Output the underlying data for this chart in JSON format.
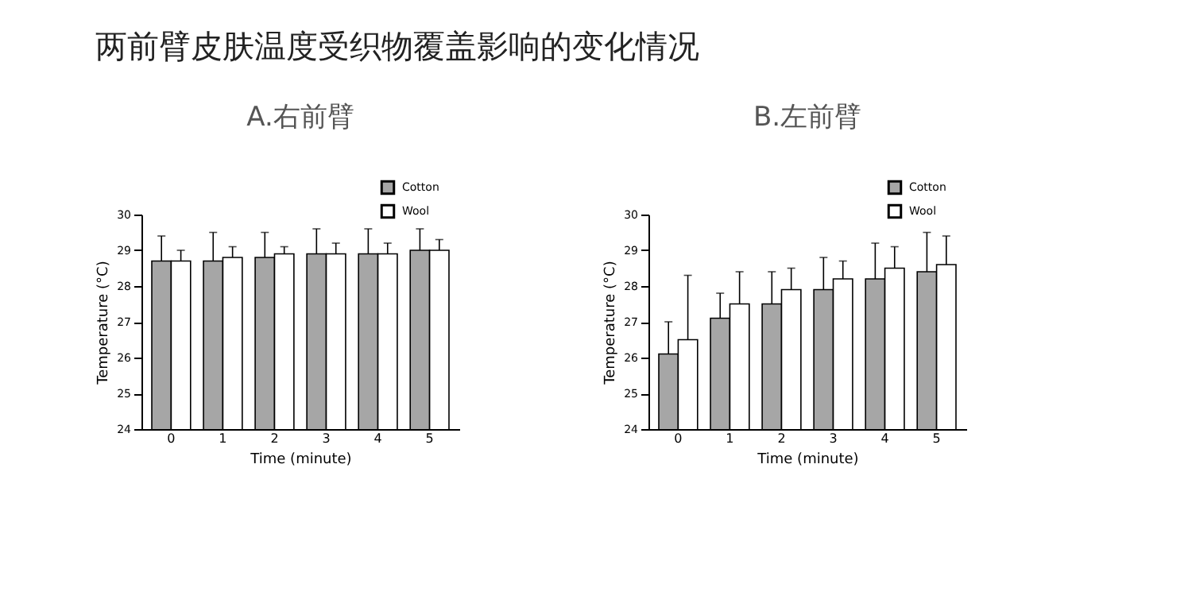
{
  "chart_data": [
    {
      "type": "other",
      "title": "两前臂皮肤温度受织物覆盖影响的变化情况"
    },
    {
      "type": "bar",
      "title": "A.右前臂",
      "xlabel": "Time (minute)",
      "ylabel": "Temperature (°C)",
      "categories": [
        "0",
        "1",
        "2",
        "3",
        "4",
        "5"
      ],
      "ylim": [
        24,
        30
      ],
      "yticks": [
        24,
        25,
        26,
        27,
        28,
        29,
        30
      ],
      "grid": false,
      "legend": "top right",
      "series": [
        {
          "name": "Cotton",
          "color": "#a6a6a6",
          "values": [
            28.7,
            28.7,
            28.8,
            28.9,
            28.9,
            29.0
          ],
          "errors": [
            [
              28.7,
              29.4
            ],
            [
              28.7,
              29.5
            ],
            [
              28.8,
              29.5
            ],
            [
              28.9,
              29.6
            ],
            [
              28.9,
              29.6
            ],
            [
              29.0,
              29.6
            ]
          ]
        },
        {
          "name": "Wool",
          "color": "#ffffff",
          "values": [
            28.7,
            28.8,
            28.9,
            28.9,
            28.9,
            29.0
          ],
          "errors": [
            [
              28.7,
              29.0
            ],
            [
              28.8,
              29.1
            ],
            [
              28.9,
              29.1
            ],
            [
              28.9,
              29.2
            ],
            [
              28.9,
              29.2
            ],
            [
              29.0,
              29.3
            ]
          ]
        }
      ]
    },
    {
      "type": "bar",
      "title": "B.左前臂",
      "xlabel": "Time (minute)",
      "ylabel": "Temperature (°C)",
      "categories": [
        "0",
        "1",
        "2",
        "3",
        "4",
        "5"
      ],
      "ylim": [
        24,
        30
      ],
      "yticks": [
        24,
        25,
        26,
        27,
        28,
        29,
        30
      ],
      "grid": false,
      "legend": "top right",
      "series": [
        {
          "name": "Cotton",
          "color": "#a6a6a6",
          "values": [
            26.1,
            27.1,
            27.5,
            27.9,
            28.2,
            28.4
          ],
          "errors": [
            [
              26.1,
              27.0
            ],
            [
              27.1,
              27.8
            ],
            [
              27.5,
              28.4
            ],
            [
              27.9,
              28.8
            ],
            [
              28.2,
              29.2
            ],
            [
              28.4,
              29.5
            ]
          ]
        },
        {
          "name": "Wool",
          "color": "#ffffff",
          "values": [
            26.5,
            27.5,
            27.9,
            28.2,
            28.5,
            28.6
          ],
          "errors": [
            [
              26.5,
              28.3
            ],
            [
              27.5,
              28.4
            ],
            [
              27.9,
              28.5
            ],
            [
              28.2,
              28.7
            ],
            [
              28.5,
              29.1
            ],
            [
              28.6,
              29.4
            ]
          ]
        }
      ]
    }
  ]
}
